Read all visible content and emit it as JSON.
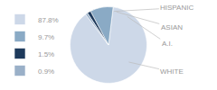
{
  "chart_data": {
    "type": "pie",
    "categories": [
      "87.8%",
      "9.7%",
      "1.5%",
      "0.9%"
    ],
    "values": [
      87.8,
      9.7,
      1.5,
      0.9
    ],
    "colors": [
      "#cdd8e8",
      "#8aaac5",
      "#1e3a5c",
      "#9ab0c8"
    ],
    "annotations": [
      "WHITE",
      "A.I.",
      "ASIAN",
      "HISPANIC"
    ],
    "legend": "left"
  }
}
